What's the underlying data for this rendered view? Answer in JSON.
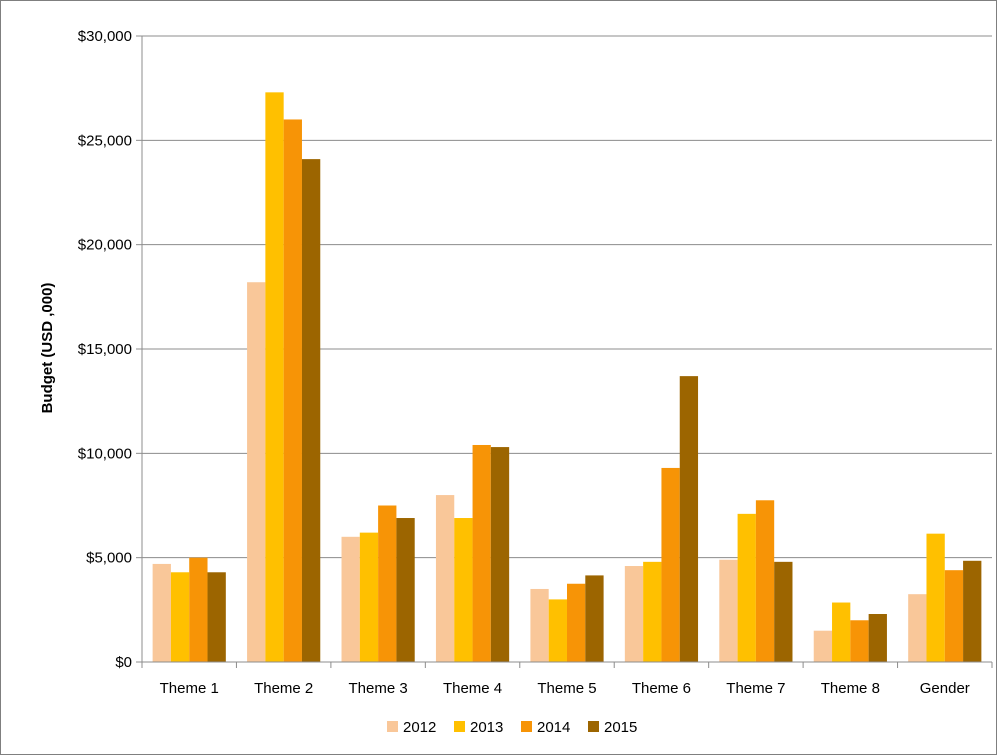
{
  "chart_data": {
    "type": "bar",
    "title": "",
    "xlabel": "",
    "ylabel": "Budget (USD ,000)",
    "ylim": [
      0,
      30000
    ],
    "yticks": [
      0,
      5000,
      10000,
      15000,
      20000,
      25000,
      30000
    ],
    "ytick_labels": [
      "$0",
      "$5,000",
      "$10,000",
      "$15,000",
      "$20,000",
      "$25,000",
      "$30,000"
    ],
    "categories": [
      "Theme 1",
      "Theme 2",
      "Theme 3",
      "Theme 4",
      "Theme 5",
      "Theme 6",
      "Theme 7",
      "Theme 8",
      "Gender"
    ],
    "series": [
      {
        "name": "2012",
        "color": "#f9c799",
        "values": [
          4700,
          18200,
          6000,
          8000,
          3500,
          4600,
          4900,
          1500,
          3250
        ]
      },
      {
        "name": "2013",
        "color": "#ffc000",
        "values": [
          4300,
          27300,
          6200,
          6900,
          3000,
          4800,
          7100,
          2850,
          6150
        ]
      },
      {
        "name": "2014",
        "color": "#f79406",
        "values": [
          5000,
          26000,
          7500,
          10400,
          3750,
          9300,
          7750,
          2000,
          4400
        ]
      },
      {
        "name": "2015",
        "color": "#9c6500",
        "values": [
          4300,
          24100,
          6900,
          10300,
          4150,
          13700,
          4800,
          2300,
          4850
        ]
      }
    ],
    "grid": true,
    "legend": "bottom"
  }
}
